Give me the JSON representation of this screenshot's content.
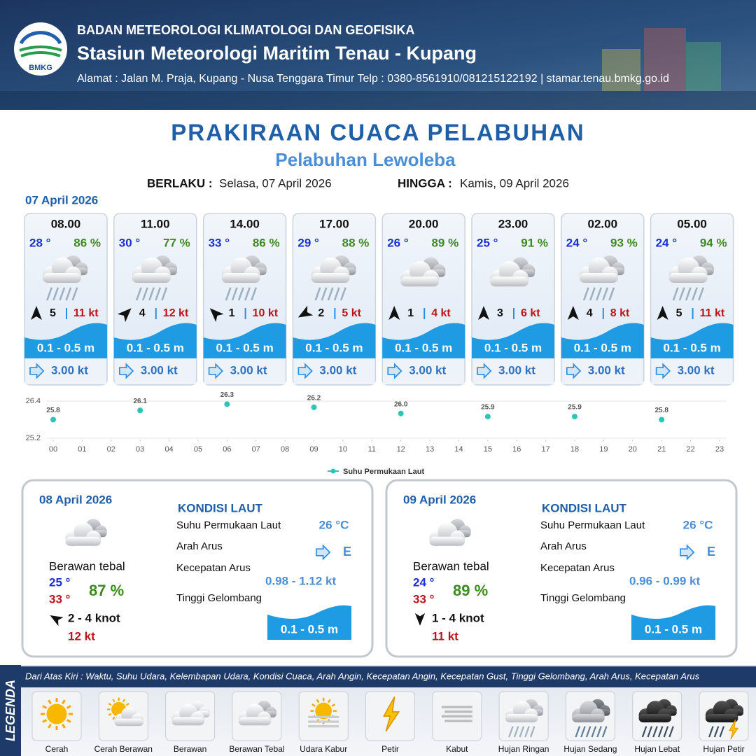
{
  "header": {
    "logo_text": "BMKG",
    "agency": "BADAN METEOROLOGI KLIMATOLOGI DAN GEOFISIKA",
    "station": "Stasiun Meteorologi Maritim Tenau - Kupang",
    "address": "Alamat : Jalan M. Praja, Kupang - Nusa Tenggara Timur Telp : 0380-8561910/081215122192  | stamar.tenau.bmkg.go.id"
  },
  "title": "PRAKIRAAN CUACA PELABUHAN",
  "subtitle": "Pelabuhan Lewoleba",
  "validity": {
    "from_label": "BERLAKU :",
    "from": "Selasa, 07 April 2026",
    "to_label": "HINGGA :",
    "to": "Kamis, 09 April 2026"
  },
  "today": {
    "date": "07 April 2026",
    "forecasts": [
      {
        "time": "08.00",
        "temperature": "28 °",
        "humidity": "86 %",
        "condition": "Hujan Ringan",
        "wind_direction": 0,
        "wind_speed": "5",
        "gust": "11 kt",
        "wave": "0.1 - 0.5 m",
        "current": "3.00 kt"
      },
      {
        "time": "11.00",
        "temperature": "30 °",
        "humidity": "77 %",
        "condition": "Hujan Ringan",
        "wind_direction": 45,
        "wind_speed": "4",
        "gust": "12 kt",
        "wave": "0.1 - 0.5 m",
        "current": "3.00 kt"
      },
      {
        "time": "14.00",
        "temperature": "33 °",
        "humidity": "86 %",
        "condition": "Hujan Ringan",
        "wind_direction": 315,
        "wind_speed": "1",
        "gust": "10 kt",
        "wave": "0.1 - 0.5 m",
        "current": "3.00 kt"
      },
      {
        "time": "17.00",
        "temperature": "29 °",
        "humidity": "88 %",
        "condition": "Hujan Ringan",
        "wind_direction": 240,
        "wind_speed": "2",
        "gust": "5 kt",
        "wave": "0.1 - 0.5 m",
        "current": "3.00 kt"
      },
      {
        "time": "20.00",
        "temperature": "26 °",
        "humidity": "89 %",
        "condition": "Berawan Tebal",
        "wind_direction": 0,
        "wind_speed": "1",
        "gust": "4 kt",
        "wave": "0.1 - 0.5 m",
        "current": "3.00 kt"
      },
      {
        "time": "23.00",
        "temperature": "25 °",
        "humidity": "91 %",
        "condition": "Berawan Tebal",
        "wind_direction": 0,
        "wind_speed": "3",
        "gust": "6 kt",
        "wave": "0.1 - 0.5 m",
        "current": "3.00 kt"
      },
      {
        "time": "02.00",
        "temperature": "24 °",
        "humidity": "93 %",
        "condition": "Hujan Ringan",
        "wind_direction": 0,
        "wind_speed": "4",
        "gust": "8 kt",
        "wave": "0.1 - 0.5 m",
        "current": "3.00 kt"
      },
      {
        "time": "05.00",
        "temperature": "24 °",
        "humidity": "94 %",
        "condition": "Hujan Ringan",
        "wind_direction": 0,
        "wind_speed": "5",
        "gust": "11 kt",
        "wave": "0.1 - 0.5 m",
        "current": "3.00 kt"
      }
    ]
  },
  "chart_data": {
    "type": "scatter",
    "x": [
      0,
      3,
      6,
      9,
      12,
      15,
      18,
      21
    ],
    "series": [
      {
        "name": "Suhu Permukaan Laut",
        "color": "#2ec4b6",
        "values": [
          25.8,
          26.1,
          26.3,
          26.2,
          26.0,
          25.9,
          25.9,
          25.8
        ],
        "value_labels": [
          "25.8",
          "26.1",
          "26.3",
          "26.2",
          "26.0",
          "25.9",
          "25.9",
          "25.8"
        ]
      }
    ],
    "xlim": [
      0,
      23
    ],
    "ylim": [
      25.2,
      26.4
    ],
    "xticks": [
      {
        "value": 0,
        "label": "00"
      },
      {
        "value": 1,
        "label": "01"
      },
      {
        "value": 2,
        "label": "02"
      },
      {
        "value": 3,
        "label": "03"
      },
      {
        "value": 4,
        "label": "04"
      },
      {
        "value": 5,
        "label": "05"
      },
      {
        "value": 6,
        "label": "06"
      },
      {
        "value": 7,
        "label": "07"
      },
      {
        "value": 8,
        "label": "08"
      },
      {
        "value": 9,
        "label": "09"
      },
      10,
      11,
      12,
      13,
      14,
      15,
      16,
      17,
      18,
      19,
      20,
      21,
      22,
      23
    ],
    "yticks": [
      25.2,
      26.4
    ],
    "grid": true
  },
  "days": [
    {
      "date": "08 April 2026",
      "condition": "Berawan tebal",
      "temp_min": "25 °",
      "temp_max": "33 °",
      "humidity": "87 %",
      "wind_direction": 300,
      "wind": "2  - 4 knot",
      "gust": "12 kt",
      "sea_title": "KONDISI LAUT",
      "sea": [
        {
          "label": "Suhu Permukaan Laut",
          "value": "26 °C"
        },
        {
          "label": "Arah Arus",
          "value": "E"
        },
        {
          "label": "Kecepatan Arus",
          "value": "0.98 - 1.12 kt"
        },
        {
          "label": "Tinggi Gelombang",
          "value": "0.1 - 0.5 m"
        }
      ]
    },
    {
      "date": "09 April 2026",
      "condition": "Berawan tebal",
      "temp_min": "24 °",
      "temp_max": "33 °",
      "humidity": "89 %",
      "wind_direction": 180,
      "wind": "1  - 4 knot",
      "gust": "11 kt",
      "sea_title": "KONDISI LAUT",
      "sea": [
        {
          "label": "Suhu Permukaan Laut",
          "value": "26 °C"
        },
        {
          "label": "Arah Arus",
          "value": "E"
        },
        {
          "label": "Kecepatan Arus",
          "value": "0.96 - 0.99 kt"
        },
        {
          "label": "Tinggi Gelombang",
          "value": "0.1 - 0.5 m"
        }
      ]
    }
  ],
  "legend": {
    "title": "LEGENDA",
    "description": "Dari Atas Kiri : Waktu, Suhu Udara, Kelembapan Udara, Kondisi Cuaca, Arah Angin, Kecepatan Angin, Kecepatan Gust, Tinggi Gelombang, Arah Arus, Kecepatan Arus",
    "items": [
      "Cerah",
      "Cerah Berawan",
      "Berawan",
      "Berawan Tebal",
      "Udara Kabur",
      "Petir",
      "Kabut",
      "Hujan Ringan",
      "Hujan Sedang",
      "Hujan Lebat",
      "Hujan Petir"
    ]
  }
}
